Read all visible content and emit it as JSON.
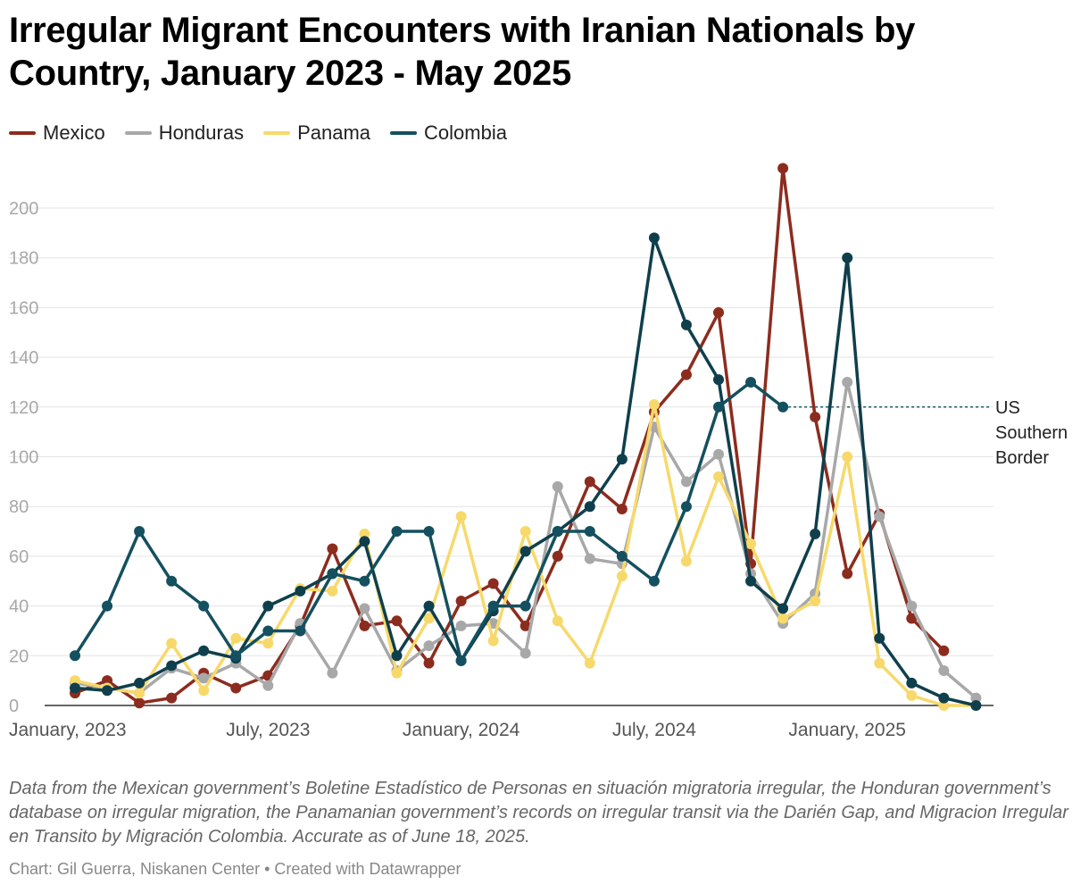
{
  "chart_data": {
    "type": "line",
    "title": "Irregular Migrant Encounters with Iranian Nationals by Country, January 2023 - May 2025",
    "xlabel": "",
    "ylabel": "",
    "ylim": [
      0,
      220
    ],
    "yticks": [
      0,
      20,
      40,
      60,
      80,
      100,
      120,
      140,
      160,
      180,
      200
    ],
    "grid": true,
    "legend_position": "top-left",
    "x_tick_labels": [
      {
        "label": "January, 2023",
        "index": 0
      },
      {
        "label": "July, 2023",
        "index": 6
      },
      {
        "label": "January, 2024",
        "index": 12
      },
      {
        "label": "July, 2024",
        "index": 18
      },
      {
        "label": "January, 2025",
        "index": 24
      }
    ],
    "categories": [
      "Jan 2023",
      "Feb 2023",
      "Mar 2023",
      "Apr 2023",
      "May 2023",
      "Jun 2023",
      "Jul 2023",
      "Aug 2023",
      "Sep 2023",
      "Oct 2023",
      "Nov 2023",
      "Dec 2023",
      "Jan 2024",
      "Feb 2024",
      "Mar 2024",
      "Apr 2024",
      "May 2024",
      "Jun 2024",
      "Jul 2024",
      "Aug 2024",
      "Sep 2024",
      "Oct 2024",
      "Nov 2024",
      "Dec 2024",
      "Jan 2025",
      "Feb 2025",
      "Mar 2025",
      "Apr 2025",
      "May 2025"
    ],
    "series": [
      {
        "name": "Mexico",
        "color": "#8c2c1e",
        "values": [
          5,
          10,
          1,
          3,
          13,
          7,
          12,
          32,
          63,
          32,
          34,
          17,
          42,
          49,
          32,
          60,
          90,
          79,
          118,
          133,
          158,
          57,
          216,
          116,
          53,
          77,
          35,
          22,
          null
        ]
      },
      {
        "name": "Honduras",
        "color": "#a8a8a8",
        "values": [
          9,
          7,
          5,
          15,
          11,
          17,
          8,
          33,
          13,
          39,
          14,
          24,
          32,
          33,
          21,
          88,
          59,
          57,
          112,
          90,
          101,
          53,
          33,
          45,
          130,
          76,
          40,
          14,
          3
        ]
      },
      {
        "name": "Panama",
        "color": "#f7d96b",
        "values": [
          10,
          7,
          5,
          25,
          6,
          27,
          25,
          47,
          46,
          69,
          13,
          35,
          76,
          26,
          70,
          34,
          17,
          52,
          121,
          58,
          92,
          65,
          35,
          42,
          100,
          17,
          4,
          0,
          0
        ]
      },
      {
        "name": "Colombia",
        "color": "#14505f",
        "values": [
          20,
          40,
          70,
          50,
          40,
          20,
          30,
          30,
          53,
          50,
          70,
          70,
          18,
          40,
          40,
          70,
          70,
          60,
          50,
          80,
          120,
          130,
          120,
          null,
          null,
          null,
          null,
          null,
          null
        ]
      },
      {
        "name": "US Southern Border",
        "color": "#0f3f4c",
        "values": [
          7,
          6,
          9,
          16,
          22,
          19,
          40,
          46,
          53,
          66,
          20,
          40,
          18,
          38,
          62,
          70,
          80,
          99,
          188,
          153,
          131,
          50,
          39,
          69,
          180,
          27,
          9,
          3,
          0
        ]
      }
    ],
    "annotations": [
      {
        "text_lines": [
          "US",
          "Southern",
          "Border"
        ],
        "value": 120,
        "from_index": 22
      }
    ]
  },
  "legend": [
    {
      "label": "Mexico",
      "color": "#8c2c1e"
    },
    {
      "label": "Honduras",
      "color": "#a8a8a8"
    },
    {
      "label": "Panama",
      "color": "#f7d96b"
    },
    {
      "label": "Colombia",
      "color": "#14505f"
    }
  ],
  "notes": "Data from the Mexican government’s Boletine Estadístico de Personas en situación migratoria irregular, the Honduran government’s database on irregular migration, the Panamanian government’s records on irregular transit via the Darién Gap, and Migracion Irregular en Transito by Migración Colombia. Accurate as of June 18, 2025.",
  "credit": "Chart: Gil Guerra, Niskanen Center • Created with Datawrapper"
}
